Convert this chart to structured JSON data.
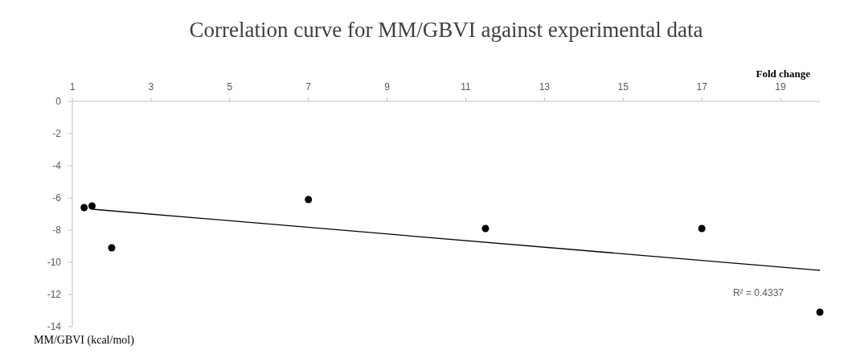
{
  "chart_data": {
    "type": "scatter",
    "title": "Correlation curve for MM/GBVI against experimental data",
    "xlabel": "Fold change",
    "ylabel": "MM/GBVI  (kcal/mol)",
    "xlim": [
      1,
      20
    ],
    "xticks": [
      1,
      3,
      5,
      7,
      9,
      11,
      13,
      15,
      17,
      19
    ],
    "ylim": [
      -14,
      0
    ],
    "yticks": [
      0,
      -2,
      -4,
      -6,
      -8,
      -10,
      -12,
      -14
    ],
    "grid": false,
    "marker": "circle",
    "series": [
      {
        "color": "#000000",
        "x": [
          1.3,
          1.5,
          2,
          7,
          11.5,
          17,
          20
        ],
        "values": [
          -6.6,
          -6.5,
          -9.1,
          -6.1,
          -7.9,
          -7.9,
          -13.1
        ]
      },
      {
        "type": "line",
        "color": "#000000",
        "x": [
          1.5,
          20
        ],
        "values": [
          -6.7,
          -10.5
        ],
        "line_style": "solid",
        "marker": "none"
      }
    ],
    "annotations": [
      "R² = 0.4337"
    ]
  }
}
